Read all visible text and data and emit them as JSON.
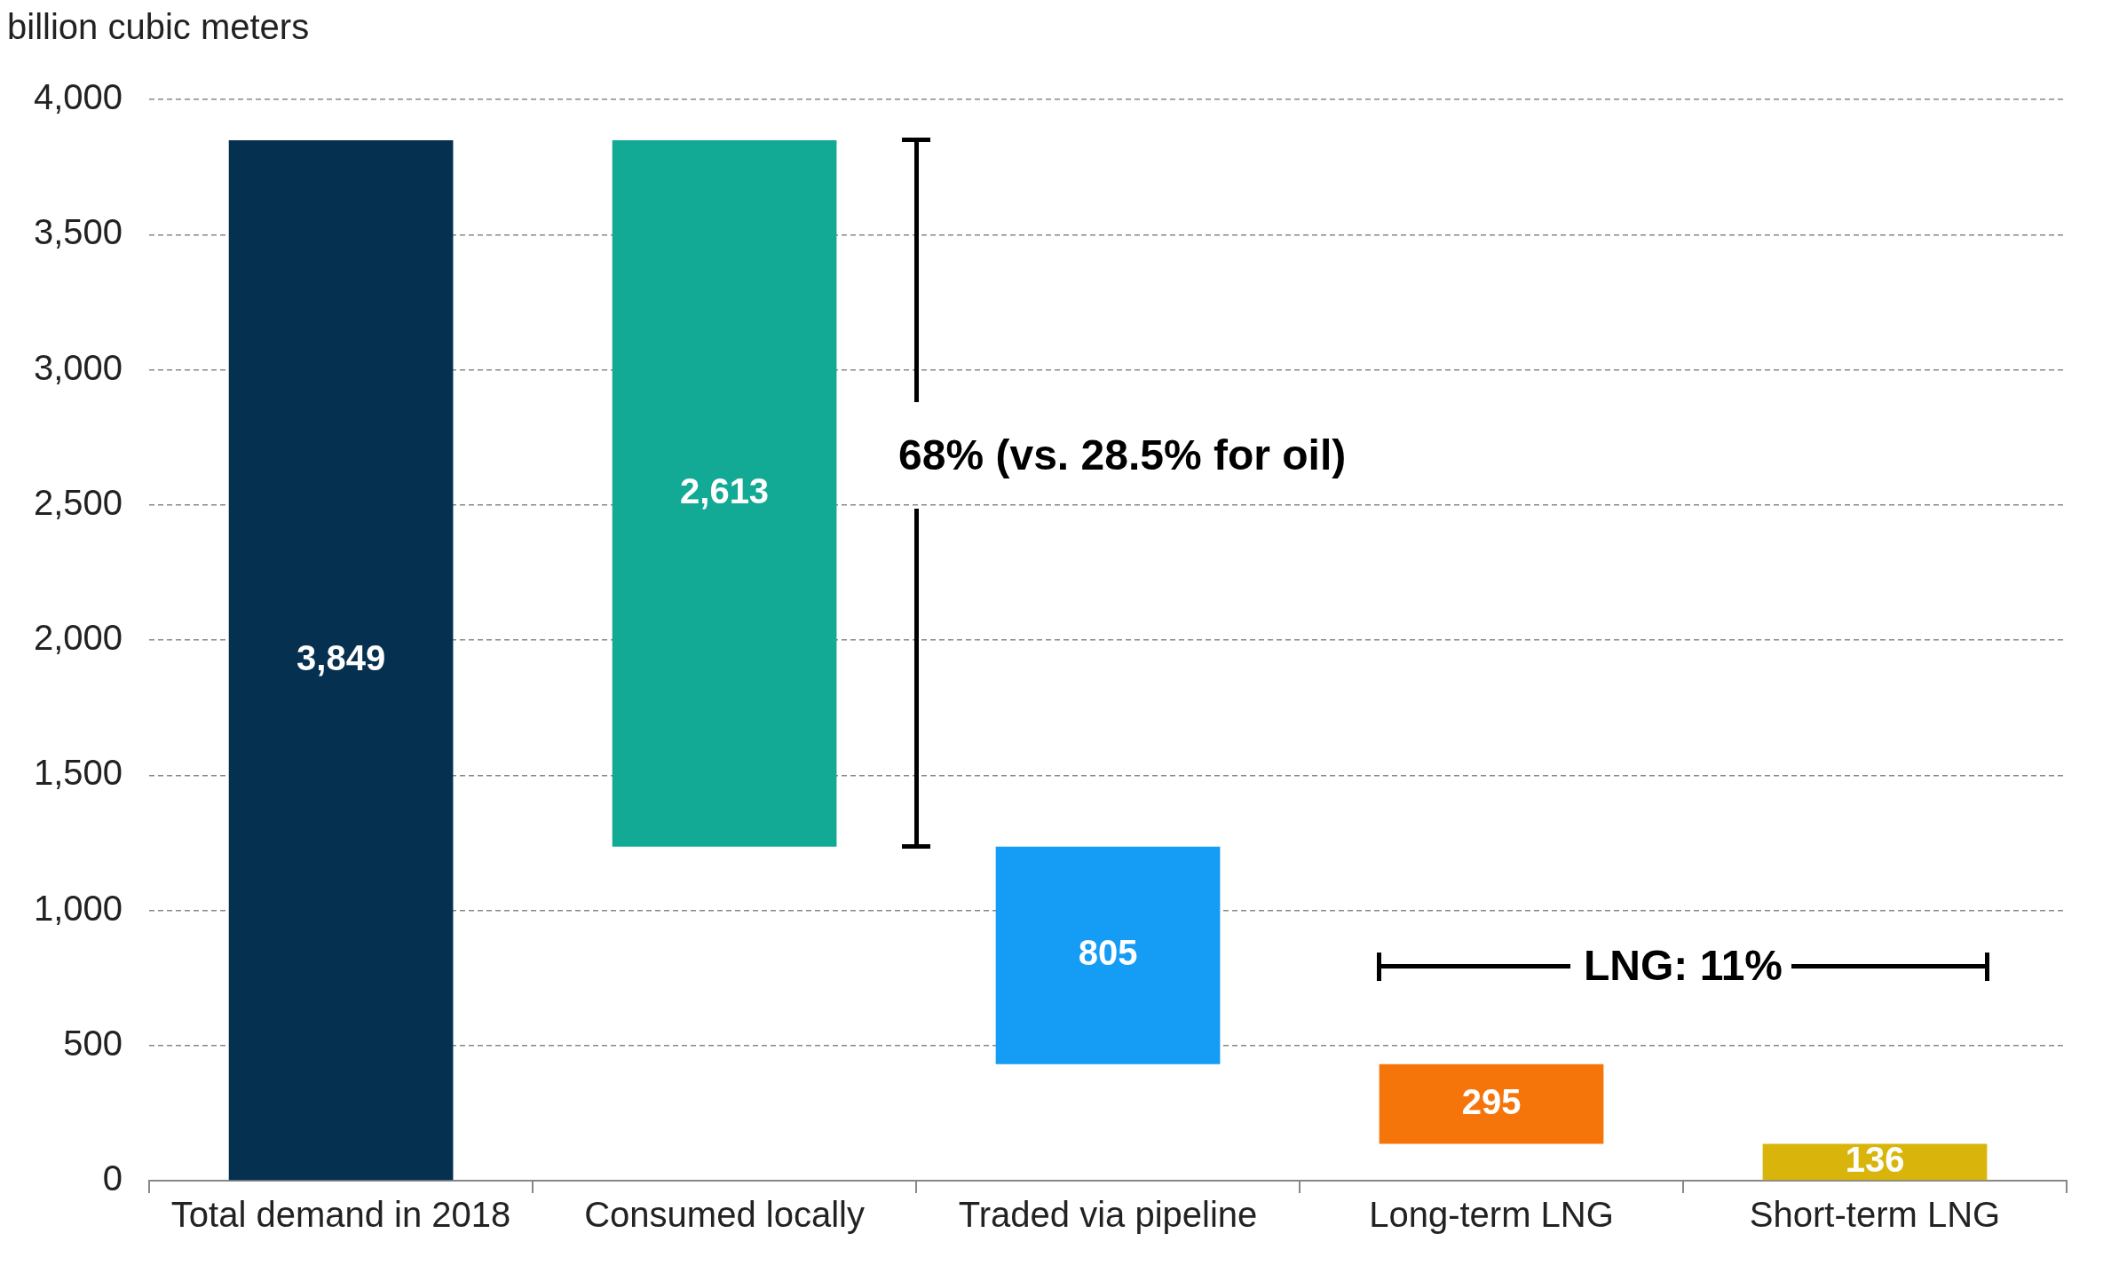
{
  "chart_data": {
    "type": "bar",
    "ylabel": "billion cubic meters",
    "categories": [
      "Total demand in 2018",
      "Consumed locally",
      "Traded via pipeline",
      "Long-term LNG",
      "Short-term LNG"
    ],
    "values": [
      3849,
      2613,
      805,
      295,
      136
    ],
    "base": [
      0,
      1236,
      431,
      136,
      0
    ],
    "colors": [
      "#06304f",
      "#12aa94",
      "#159cf5",
      "#f5750a",
      "#d9b50c"
    ],
    "value_labels": [
      "3,849",
      "2,613",
      "805",
      "295",
      "136"
    ],
    "ylim": [
      0,
      4000
    ],
    "yticks": [
      0,
      500,
      {
        "value": 1000,
        "label": "1,000"
      },
      {
        "value": 1500,
        "label": "1,500"
      },
      {
        "value": 2000,
        "label": "2,000"
      },
      {
        "value": 2500,
        "label": "2,500"
      },
      {
        "value": 3000,
        "label": "3,000"
      },
      {
        "value": 3500,
        "label": "3,500"
      },
      {
        "value": 4000,
        "label": "4,000"
      }
    ],
    "grid": "y",
    "legend": false,
    "annotations": [
      "68% (vs. 28.5% for oil)",
      "LNG: 11%"
    ]
  }
}
